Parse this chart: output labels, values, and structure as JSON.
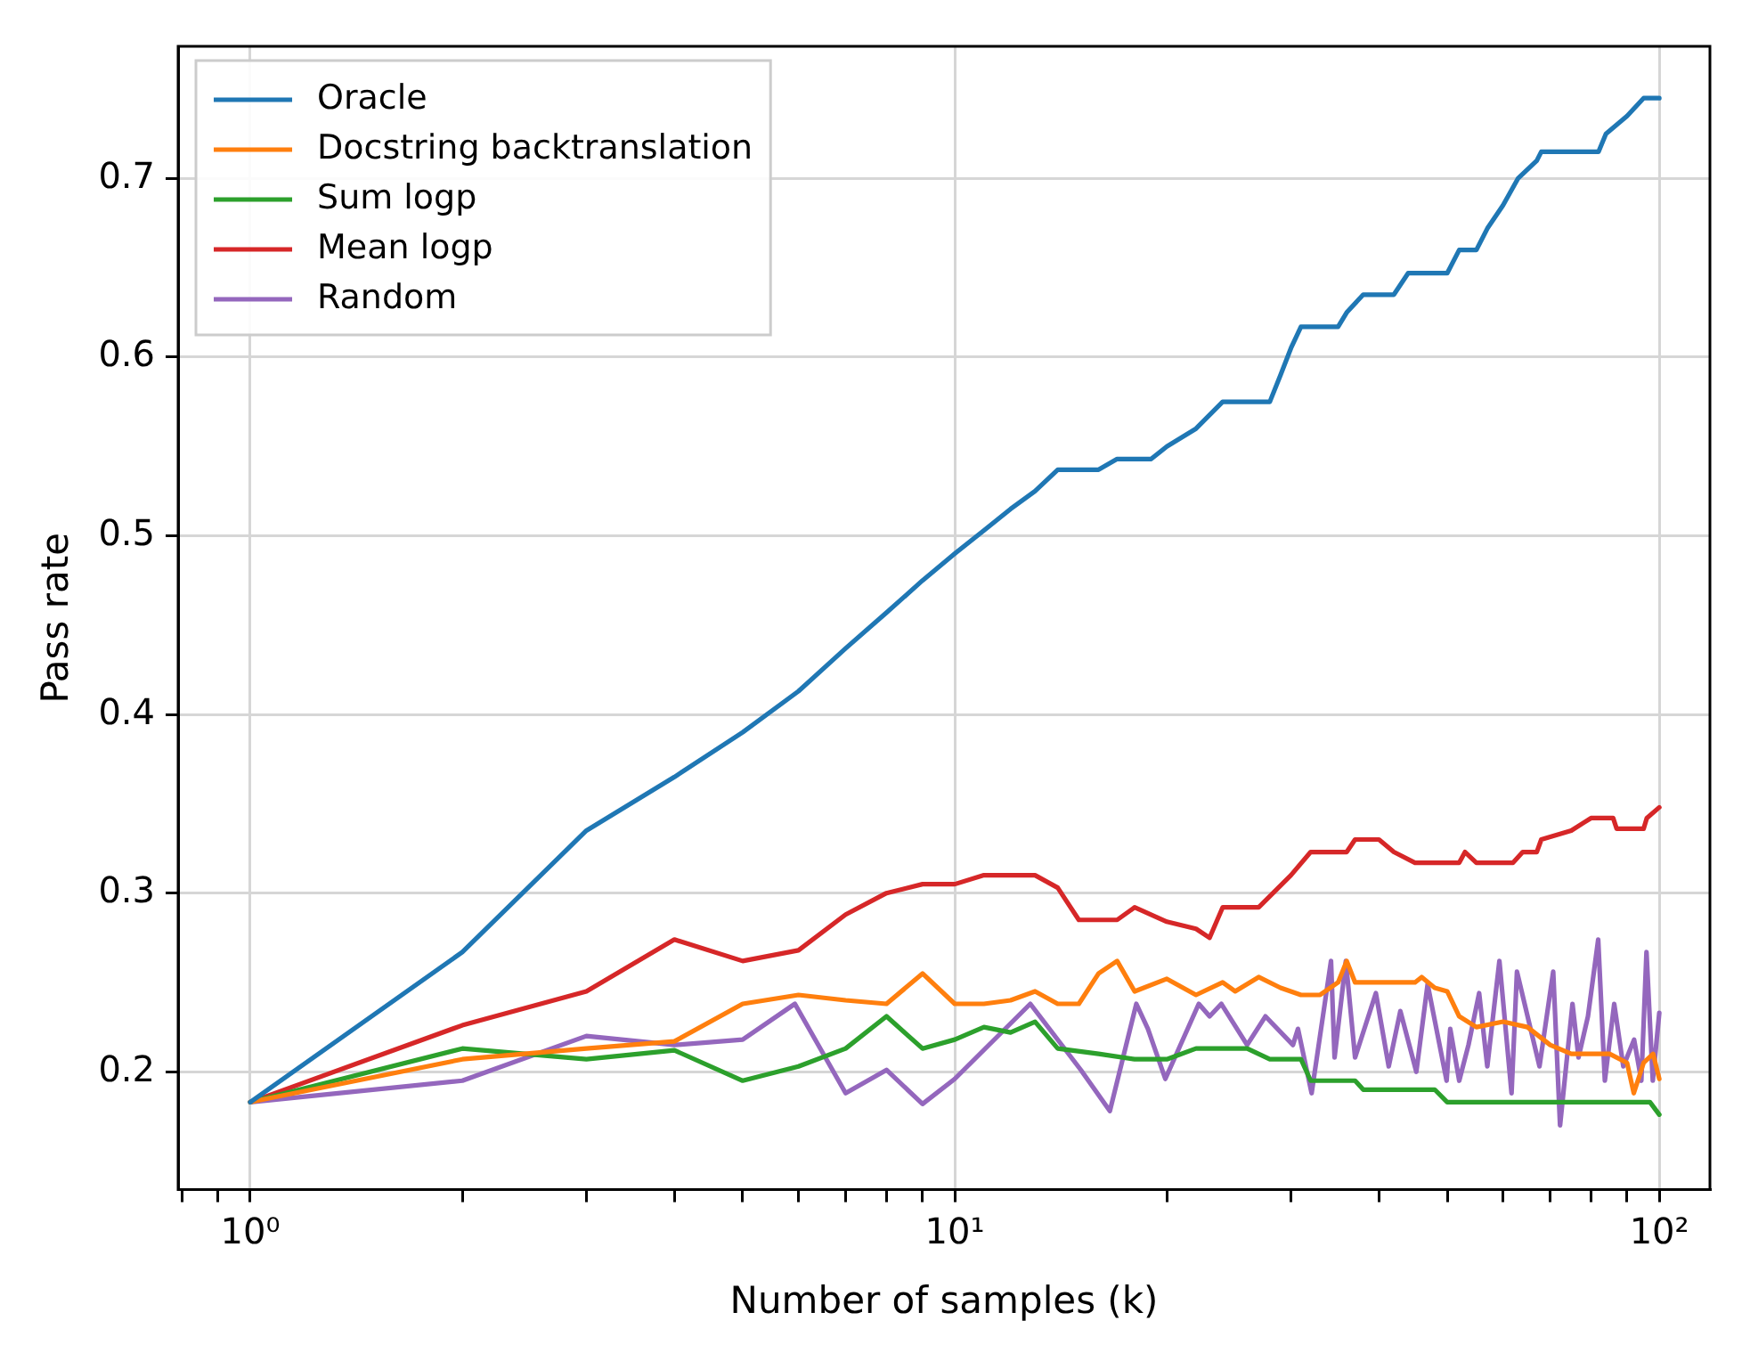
{
  "chart_data": {
    "type": "line",
    "xlabel": "Number of samples (k)",
    "ylabel": "Pass rate",
    "log": "x",
    "grid": true,
    "legend": "top left",
    "marker": "none",
    "line_style": "solid",
    "xlim": [
      0.79,
      118
    ],
    "xticks": [
      {
        "value": 0.8,
        "label": null
      },
      {
        "value": 0.9,
        "label": null
      },
      {
        "value": 1,
        "label": "10⁰"
      },
      {
        "value": 2,
        "label": null
      },
      {
        "value": 3,
        "label": null
      },
      {
        "value": 4,
        "label": null
      },
      {
        "value": 5,
        "label": null
      },
      {
        "value": 6,
        "label": null
      },
      {
        "value": 7,
        "label": null
      },
      {
        "value": 8,
        "label": null
      },
      {
        "value": 9,
        "label": null
      },
      {
        "value": 10,
        "label": "10¹"
      },
      {
        "value": 20,
        "label": null
      },
      {
        "value": 30,
        "label": null
      },
      {
        "value": 40,
        "label": null
      },
      {
        "value": 50,
        "label": null
      },
      {
        "value": 60,
        "label": null
      },
      {
        "value": 70,
        "label": null
      },
      {
        "value": 80,
        "label": null
      },
      {
        "value": 90,
        "label": null
      },
      {
        "value": 100,
        "label": "10²"
      }
    ],
    "ylim": [
      0.134,
      0.774
    ],
    "yticks": [
      0.2,
      0.3,
      0.4,
      0.5,
      0.6,
      0.7
    ],
    "series": [
      {
        "name": "Oracle",
        "color": "#1f77b4",
        "x": [
          1,
          2,
          3,
          4,
          5,
          6,
          7,
          8,
          9,
          10,
          11,
          12,
          13,
          14,
          16,
          17,
          19,
          20,
          22,
          24,
          28,
          29,
          30,
          31,
          35,
          36,
          38,
          42,
          44,
          50,
          52,
          55,
          57,
          60,
          63,
          67,
          68,
          82,
          84,
          90,
          95,
          100
        ],
        "values": [
          0.183,
          0.267,
          0.335,
          0.365,
          0.39,
          0.413,
          0.437,
          0.457,
          0.475,
          0.49,
          0.503,
          0.515,
          0.525,
          0.537,
          0.537,
          0.543,
          0.543,
          0.55,
          0.56,
          0.575,
          0.575,
          0.59,
          0.605,
          0.617,
          0.617,
          0.625,
          0.635,
          0.635,
          0.647,
          0.647,
          0.66,
          0.66,
          0.672,
          0.685,
          0.7,
          0.71,
          0.715,
          0.715,
          0.725,
          0.735,
          0.745,
          0.745
        ]
      },
      {
        "name": "Docstring backtranslation",
        "color": "#ff7f0e",
        "x": [
          1,
          2,
          3,
          4,
          5,
          6,
          7,
          8,
          9,
          10,
          11,
          12,
          13,
          14,
          15,
          16,
          17,
          18,
          20,
          22,
          24,
          25,
          27,
          29,
          31,
          33,
          35,
          36,
          37,
          45,
          46,
          48,
          50,
          52,
          55,
          60,
          65,
          70,
          75,
          85,
          90,
          92,
          95,
          98,
          100
        ],
        "values": [
          0.183,
          0.207,
          0.213,
          0.217,
          0.238,
          0.243,
          0.24,
          0.238,
          0.255,
          0.238,
          0.238,
          0.24,
          0.245,
          0.238,
          0.238,
          0.255,
          0.262,
          0.245,
          0.252,
          0.243,
          0.25,
          0.245,
          0.253,
          0.247,
          0.243,
          0.243,
          0.25,
          0.262,
          0.25,
          0.25,
          0.253,
          0.247,
          0.245,
          0.231,
          0.225,
          0.228,
          0.225,
          0.215,
          0.21,
          0.21,
          0.205,
          0.188,
          0.205,
          0.21,
          0.196
        ]
      },
      {
        "name": "Sum logp",
        "color": "#2ca02c",
        "x": [
          1,
          2,
          3,
          4,
          5,
          6,
          7,
          8,
          9,
          10,
          11,
          12,
          13,
          14,
          16,
          18,
          20,
          22,
          26,
          28,
          31,
          32,
          37,
          38,
          48,
          50,
          97,
          100
        ],
        "values": [
          0.183,
          0.213,
          0.207,
          0.212,
          0.195,
          0.203,
          0.213,
          0.231,
          0.213,
          0.218,
          0.225,
          0.222,
          0.228,
          0.213,
          0.21,
          0.207,
          0.207,
          0.213,
          0.213,
          0.207,
          0.207,
          0.195,
          0.195,
          0.19,
          0.19,
          0.183,
          0.183,
          0.176
        ]
      },
      {
        "name": "Mean logp",
        "color": "#d62728",
        "x": [
          1,
          2,
          3,
          4,
          5,
          6,
          7,
          8,
          9,
          10,
          11,
          13,
          14,
          15,
          17,
          18,
          20,
          22,
          23,
          24,
          27,
          30,
          32,
          36,
          37,
          40,
          42,
          45,
          52,
          53,
          55,
          62,
          64,
          67,
          68,
          75,
          80,
          86,
          87,
          95,
          96,
          100
        ],
        "values": [
          0.183,
          0.226,
          0.245,
          0.274,
          0.262,
          0.268,
          0.288,
          0.3,
          0.305,
          0.305,
          0.31,
          0.31,
          0.303,
          0.285,
          0.285,
          0.292,
          0.284,
          0.28,
          0.275,
          0.292,
          0.292,
          0.31,
          0.323,
          0.323,
          0.33,
          0.33,
          0.323,
          0.317,
          0.317,
          0.323,
          0.317,
          0.317,
          0.323,
          0.323,
          0.33,
          0.335,
          0.342,
          0.342,
          0.336,
          0.336,
          0.342,
          0.348
        ]
      },
      {
        "name": "Random",
        "color": "#9467bd",
        "x": [
          1,
          2,
          3,
          4,
          5,
          5.93,
          7,
          8,
          9,
          10,
          12.8,
          15.1,
          16.6,
          18.1,
          18.8,
          19.9,
          22.2,
          23,
          23.9,
          26,
          27.6,
          30.2,
          30.7,
          32.1,
          34.2,
          34.6,
          35.9,
          37,
          39.6,
          41.3,
          42.9,
          45.2,
          46.9,
          49.9,
          50.5,
          52,
          53.6,
          55.5,
          57,
          59.3,
          61.7,
          62.8,
          67.6,
          70.7,
          72.3,
          75.3,
          76.8,
          79.2,
          81.9,
          83.7,
          86.3,
          88.9,
          92.1,
          94.3,
          95.9,
          97.9,
          100
        ],
        "values": [
          0.183,
          0.195,
          0.22,
          0.215,
          0.218,
          0.238,
          0.188,
          0.201,
          0.182,
          0.196,
          0.238,
          0.201,
          0.178,
          0.238,
          0.224,
          0.196,
          0.238,
          0.231,
          0.238,
          0.215,
          0.231,
          0.215,
          0.224,
          0.188,
          0.262,
          0.208,
          0.262,
          0.208,
          0.244,
          0.203,
          0.234,
          0.2,
          0.249,
          0.195,
          0.224,
          0.195,
          0.215,
          0.244,
          0.203,
          0.262,
          0.188,
          0.256,
          0.203,
          0.256,
          0.17,
          0.238,
          0.208,
          0.231,
          0.274,
          0.195,
          0.238,
          0.203,
          0.218,
          0.195,
          0.267,
          0.195,
          0.233
        ]
      }
    ]
  }
}
